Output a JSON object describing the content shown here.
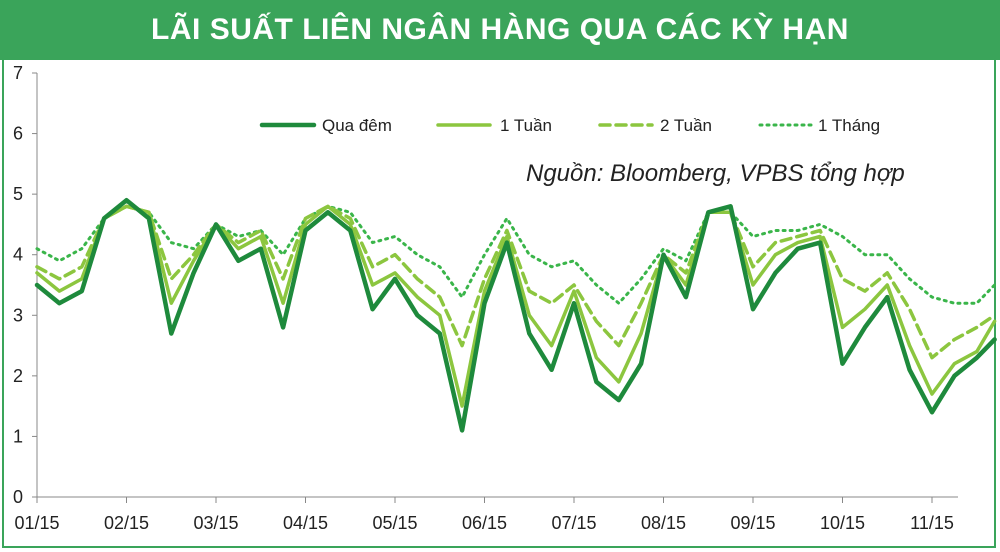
{
  "chart_data": {
    "type": "line",
    "title": "LÃI SUẤT LIÊN NGÂN HÀNG QUA CÁC KỲ HẠN",
    "source": "Nguồn: Bloomberg, VPBS tổng hợp",
    "xlabel": "",
    "ylabel": "",
    "ylim": [
      0,
      7
    ],
    "yticks": [
      "0",
      "1",
      "2",
      "3",
      "4",
      "5",
      "6",
      "7"
    ],
    "xticks": [
      "01/15",
      "02/15",
      "03/15",
      "04/15",
      "05/15",
      "06/15",
      "07/15",
      "08/15",
      "09/15",
      "10/15",
      "11/15"
    ],
    "x": [
      0,
      0.25,
      0.5,
      0.75,
      1,
      1.25,
      1.5,
      1.75,
      2,
      2.25,
      2.5,
      2.75,
      3,
      3.25,
      3.5,
      3.75,
      4,
      4.25,
      4.5,
      4.75,
      5,
      5.25,
      5.5,
      5.75,
      6,
      6.25,
      6.5,
      6.75,
      7,
      7.25,
      7.5,
      7.75,
      8,
      8.25,
      8.5,
      8.75,
      9,
      9.25,
      9.5,
      9.75,
      10,
      10.25,
      10.5,
      10.7
    ],
    "legend_position": "top-right",
    "grid": false,
    "series": [
      {
        "name": "Qua đêm",
        "style": "solid-thick",
        "color": "#1e8a3c",
        "values": [
          3.5,
          3.2,
          3.4,
          4.6,
          4.9,
          4.6,
          2.7,
          3.7,
          4.5,
          3.9,
          4.1,
          2.8,
          4.4,
          4.7,
          4.4,
          3.1,
          3.6,
          3.0,
          2.7,
          1.1,
          3.2,
          4.2,
          2.7,
          2.1,
          3.2,
          1.9,
          1.6,
          2.2,
          4.0,
          3.3,
          4.7,
          4.8,
          3.1,
          3.7,
          4.1,
          4.2,
          2.2,
          2.8,
          3.3,
          2.1,
          1.4,
          2.0,
          2.3,
          2.6
        ]
      },
      {
        "name": "1 Tuần",
        "style": "solid",
        "color": "#8cc63f",
        "values": [
          3.7,
          3.4,
          3.6,
          4.6,
          4.8,
          4.7,
          3.2,
          3.9,
          4.5,
          4.1,
          4.3,
          3.2,
          4.5,
          4.8,
          4.5,
          3.5,
          3.7,
          3.3,
          3.0,
          1.5,
          3.4,
          4.3,
          3.0,
          2.5,
          3.4,
          2.3,
          1.9,
          2.7,
          4.0,
          3.5,
          4.7,
          4.7,
          3.5,
          4.0,
          4.2,
          4.3,
          2.8,
          3.1,
          3.5,
          2.5,
          1.7,
          2.2,
          2.4,
          2.9
        ]
      },
      {
        "name": "2 Tuần",
        "style": "dashed",
        "color": "#8cc63f",
        "values": [
          3.8,
          3.6,
          3.8,
          4.6,
          4.8,
          4.7,
          3.6,
          4.0,
          4.5,
          4.2,
          4.4,
          3.6,
          4.6,
          4.8,
          4.6,
          3.8,
          4.0,
          3.6,
          3.3,
          2.5,
          3.6,
          4.4,
          3.4,
          3.2,
          3.5,
          2.9,
          2.5,
          3.2,
          4.0,
          3.7,
          4.7,
          4.7,
          3.8,
          4.2,
          4.3,
          4.4,
          3.6,
          3.4,
          3.7,
          3.1,
          2.3,
          2.6,
          2.8,
          3.0
        ]
      },
      {
        "name": "1 Tháng",
        "style": "dotted",
        "color": "#3ab54a",
        "values": [
          4.1,
          3.9,
          4.1,
          4.6,
          4.8,
          4.7,
          4.2,
          4.1,
          4.5,
          4.3,
          4.4,
          4.0,
          4.6,
          4.8,
          4.7,
          4.2,
          4.3,
          4.0,
          3.8,
          3.3,
          4.0,
          4.6,
          4.0,
          3.8,
          3.9,
          3.5,
          3.2,
          3.6,
          4.1,
          3.9,
          4.7,
          4.7,
          4.3,
          4.4,
          4.4,
          4.5,
          4.3,
          4.0,
          4.0,
          3.6,
          3.3,
          3.2,
          3.2,
          3.5
        ]
      }
    ]
  }
}
